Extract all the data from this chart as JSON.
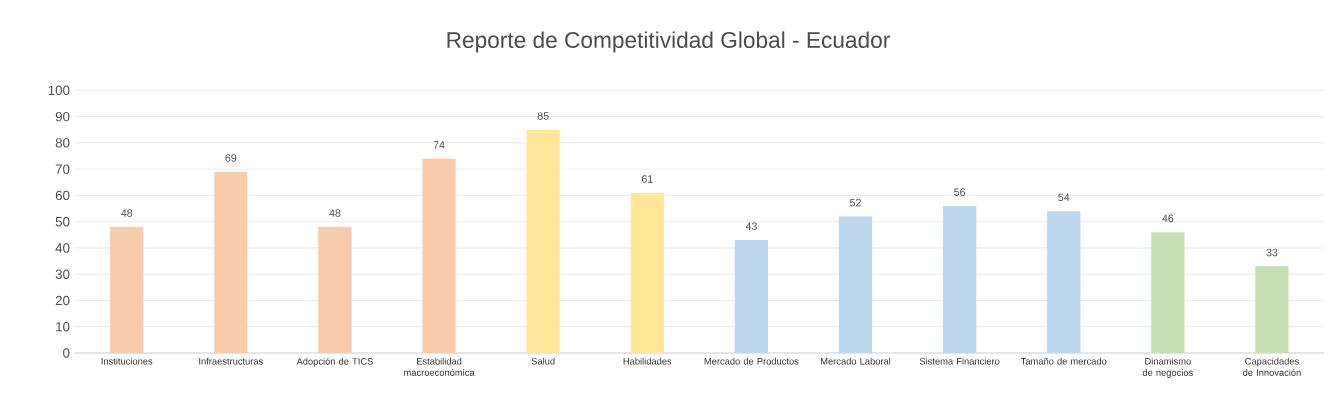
{
  "chart_data": {
    "type": "bar",
    "title": "Reporte de Competitividad Global - Ecuador",
    "categories": [
      "Instituciones",
      "Infraestructuras",
      "Adopción de TICS",
      "Estabilidad macroeconómica",
      "Salud",
      "Habilidades",
      "Mercado de Productos",
      "Mercado Laboral",
      "Sistema Financiero",
      "Tamaño de mercado",
      "Dinamismo de negocios",
      "Capacidades de Innovación"
    ],
    "values": [
      48,
      69,
      48,
      74,
      85,
      61,
      43,
      52,
      56,
      54,
      46,
      33
    ],
    "colors": [
      "#f8cbad",
      "#f8cbad",
      "#f8cbad",
      "#f8cbad",
      "#ffe699",
      "#ffe699",
      "#bdd7ee",
      "#bdd7ee",
      "#bdd7ee",
      "#bdd7ee",
      "#c5e0b4",
      "#c5e0b4"
    ],
    "ylim": [
      0,
      100
    ],
    "yticks": [
      0,
      10,
      20,
      30,
      40,
      50,
      60,
      70,
      80,
      90,
      100
    ],
    "grid": "y",
    "data_labels": true
  }
}
